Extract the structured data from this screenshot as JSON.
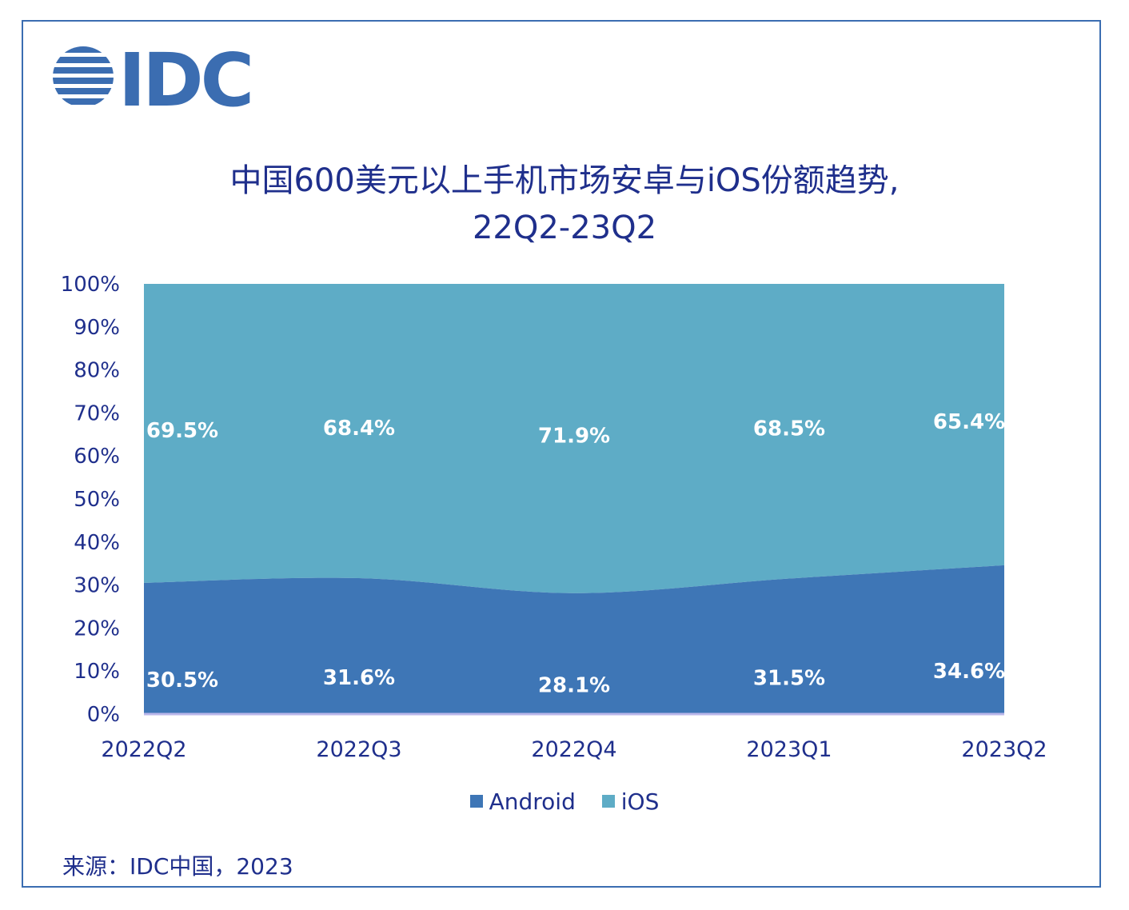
{
  "logo": {
    "text": "IDC",
    "color": "#3b6db1",
    "icon": "idc-globe-icon"
  },
  "title_line1": "中国600美元以上手机市场安卓与iOS份额趋势,",
  "title_line2": "22Q2-23Q2",
  "source": "来源：IDC中国，2023",
  "colors": {
    "android": "#3e76b6",
    "ios": "#5eacc6",
    "text": "#1f2f8c",
    "frame": "#3b6db1"
  },
  "chart_data": {
    "type": "area",
    "stacked": true,
    "categories": [
      "2022Q2",
      "2022Q3",
      "2022Q4",
      "2023Q1",
      "2023Q2"
    ],
    "series": [
      {
        "name": "Android",
        "values": [
          30.5,
          31.6,
          28.1,
          31.5,
          34.6
        ],
        "labels": [
          "30.5%",
          "31.6%",
          "28.1%",
          "31.5%",
          "34.6%"
        ]
      },
      {
        "name": "iOS",
        "values": [
          69.5,
          68.4,
          71.9,
          68.5,
          65.4
        ],
        "labels": [
          "69.5%",
          "68.4%",
          "71.9%",
          "68.5%",
          "65.4%"
        ]
      }
    ],
    "ylim": [
      0,
      100
    ],
    "yticks": [
      "0%",
      "10%",
      "20%",
      "30%",
      "40%",
      "50%",
      "60%",
      "70%",
      "80%",
      "90%",
      "100%"
    ],
    "legend": "bottom",
    "grid": false
  }
}
